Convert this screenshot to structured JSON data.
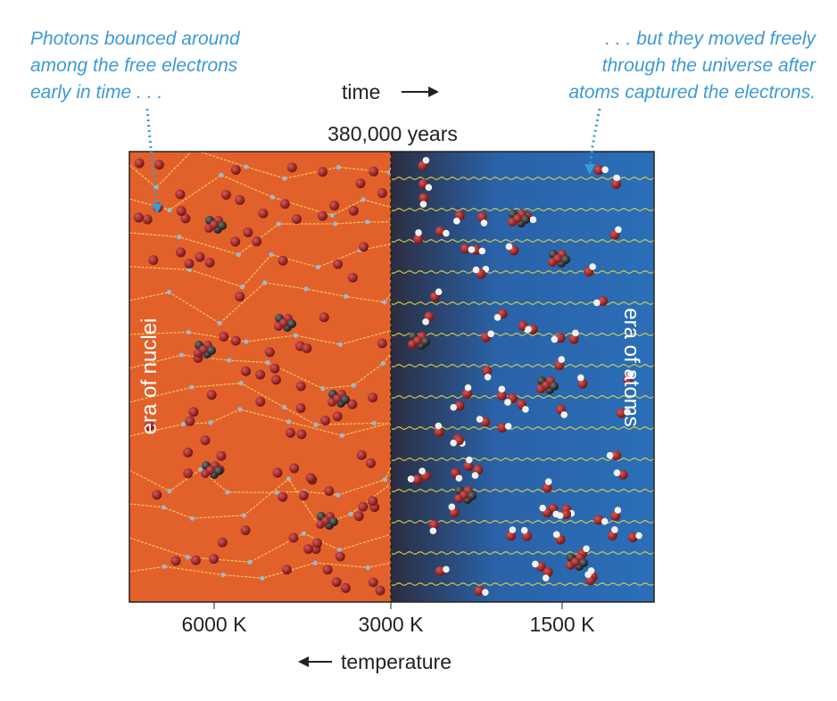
{
  "annotations": {
    "left": {
      "lines": [
        "Photons bounced around",
        "among the free electrons",
        "early in time . . ."
      ]
    },
    "right": {
      "lines": [
        ". . . but they moved freely",
        "through the universe after",
        "atoms captured the electrons."
      ]
    }
  },
  "top": {
    "axis_label": "time",
    "marker": "380,000 years"
  },
  "panels": {
    "left": {
      "label": "era of nuclei"
    },
    "right": {
      "label": "era of atoms"
    }
  },
  "bottom": {
    "ticks": [
      "6000 K",
      "3000 K",
      "1500 K"
    ],
    "axis_label": "temperature"
  }
}
